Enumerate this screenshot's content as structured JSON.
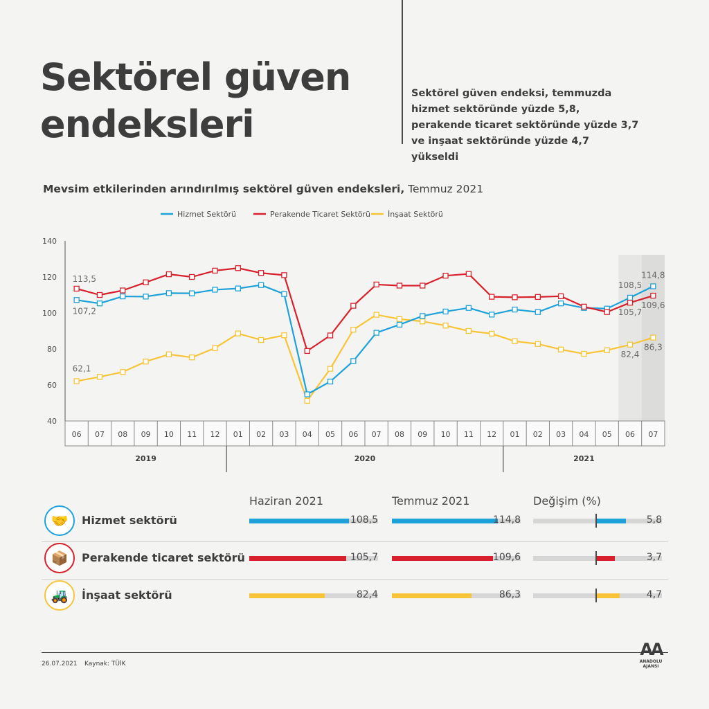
{
  "title_line1": "Sektörel güven",
  "title_line2": "endeksleri",
  "summary": "Sektörel güven endeksi, temmuzda hizmet sektöründe yüzde 5,8, perakende ticaret sektöründe yüzde 3,7 ve inşaat sektöründe yüzde 4,7 yükseldi",
  "subtitle_bold": "Mevsim etkilerinden arındırılmış sektörel güven endeksleri,",
  "subtitle_rest": " Temmuz 2021",
  "colors": {
    "hizmet": "#1da1d9",
    "perakende": "#d7202b",
    "insaat": "#f8c437"
  },
  "chart_data": {
    "type": "line",
    "categories": [
      "06",
      "07",
      "08",
      "09",
      "10",
      "11",
      "12",
      "01",
      "02",
      "03",
      "04",
      "05",
      "06",
      "07",
      "08",
      "09",
      "10",
      "11",
      "12",
      "01",
      "02",
      "03",
      "04",
      "05",
      "06",
      "07"
    ],
    "years": [
      {
        "label": "2019",
        "start": 0,
        "end": 6
      },
      {
        "label": "2020",
        "start": 7,
        "end": 18
      },
      {
        "label": "2021",
        "start": 19,
        "end": 25
      }
    ],
    "ylim": [
      40,
      140
    ],
    "yticks": [
      40,
      60,
      80,
      100,
      120,
      140
    ],
    "highlight_last": 2,
    "series": [
      {
        "name": "Hizmet Sektörü",
        "color": "#1da1d9",
        "values": [
          107.2,
          105.3,
          109.2,
          109.1,
          111.0,
          110.9,
          112.9,
          113.6,
          115.5,
          110.5,
          54.8,
          61.9,
          73.3,
          89.0,
          93.5,
          98.3,
          100.8,
          102.8,
          99.1,
          101.9,
          100.5,
          105.3,
          102.8,
          102.4,
          108.5,
          114.8
        ]
      },
      {
        "name": "Perakende Ticaret Sektörü",
        "color": "#d7202b",
        "values": [
          113.5,
          110.0,
          112.5,
          117.0,
          121.5,
          120.0,
          123.5,
          124.9,
          122.2,
          121.0,
          78.9,
          87.5,
          104.0,
          115.8,
          115.2,
          115.2,
          120.7,
          121.7,
          109.0,
          108.7,
          108.9,
          109.3,
          103.5,
          100.5,
          105.7,
          109.6
        ]
      },
      {
        "name": "İnşaat Sektörü",
        "color": "#f8c437",
        "values": [
          62.1,
          64.5,
          67.2,
          73.0,
          77.0,
          75.3,
          80.5,
          88.6,
          85.0,
          87.6,
          51.2,
          69.0,
          90.7,
          99.0,
          96.6,
          95.3,
          93.0,
          90.0,
          88.5,
          84.3,
          82.8,
          79.7,
          77.3,
          79.3,
          82.4,
          86.3
        ]
      }
    ],
    "labels": {
      "hizmet_first": "107,2",
      "perakende_first": "113,5",
      "insaat_first": "62,1",
      "hizmet_06": "108,5",
      "hizmet_07": "114,8",
      "perakende_06": "105,7",
      "perakende_07": "109,6",
      "insaat_06": "82,4",
      "insaat_07": "86,3"
    }
  },
  "table": {
    "col_june": "Haziran 2021",
    "col_july": "Temmuz 2021",
    "col_change": "Değişim (%)",
    "rows": [
      {
        "name": "Hizmet sektörü",
        "color": "#1da1d9",
        "june": 108.5,
        "june_label": "108,5",
        "july": 114.8,
        "july_label": "114,8",
        "change": 5.8,
        "change_label": "5,8"
      },
      {
        "name": "Perakende ticaret sektörü",
        "color": "#d7202b",
        "june": 105.7,
        "june_label": "105,7",
        "july": 109.6,
        "july_label": "109,6",
        "change": 3.7,
        "change_label": "3,7"
      },
      {
        "name": "İnşaat sektörü",
        "color": "#f8c437",
        "june": 82.4,
        "june_label": "82,4",
        "july": 86.3,
        "july_label": "86,3",
        "change": 4.7,
        "change_label": "4,7"
      }
    ]
  },
  "footer": {
    "date": "26.07.2021",
    "source": "Kaynak: TÜİK",
    "logo": "AA",
    "logo_text": "ANADOLU AJANSI"
  }
}
